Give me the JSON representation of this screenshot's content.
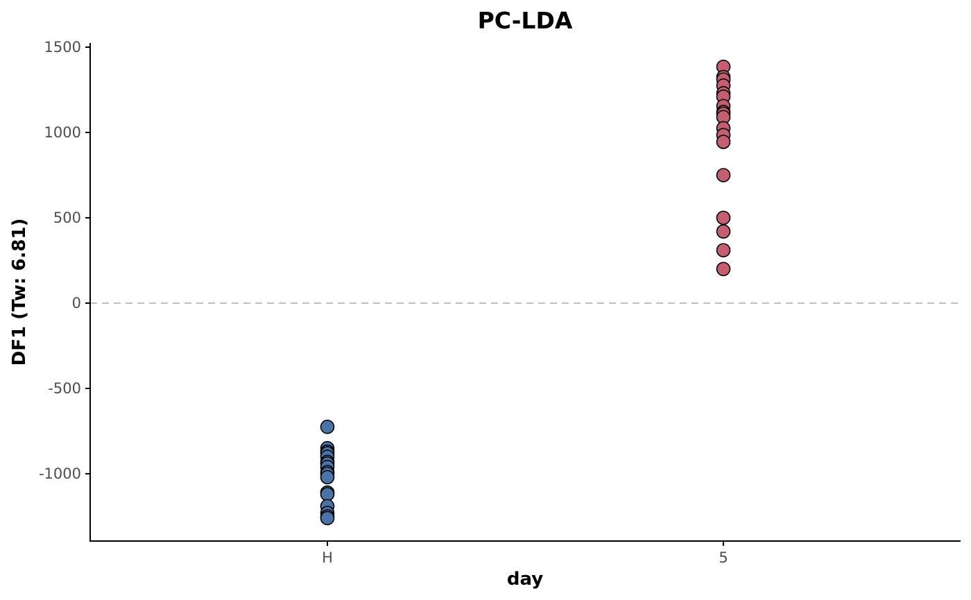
{
  "chart_data": {
    "type": "scatter",
    "title": "PC-LDA",
    "xlabel": "day",
    "ylabel": "DF1 (Tw: 6.81)",
    "categories": [
      "H",
      "5"
    ],
    "yticks": [
      -1000,
      -500,
      0,
      500,
      1000,
      1500
    ],
    "ylim": [
      -1390,
      1545
    ],
    "grid": false,
    "legend": "none",
    "reference_line": {
      "y": 0,
      "style": "dashed",
      "color": "#bfbfbf"
    },
    "series": [
      {
        "category": "H",
        "color": "#4a74a8",
        "values": [
          -725,
          -850,
          -870,
          -880,
          -900,
          -930,
          -940,
          -960,
          -990,
          -1000,
          -1020,
          -1110,
          -1120,
          -1190,
          -1230,
          -1250,
          -1260
        ]
      },
      {
        "category": "5",
        "color": "#c45f72",
        "values": [
          1385,
          1325,
          1310,
          1275,
          1230,
          1210,
          1155,
          1120,
          1110,
          1090,
          1025,
          985,
          945,
          750,
          500,
          420,
          310,
          200
        ]
      }
    ]
  }
}
